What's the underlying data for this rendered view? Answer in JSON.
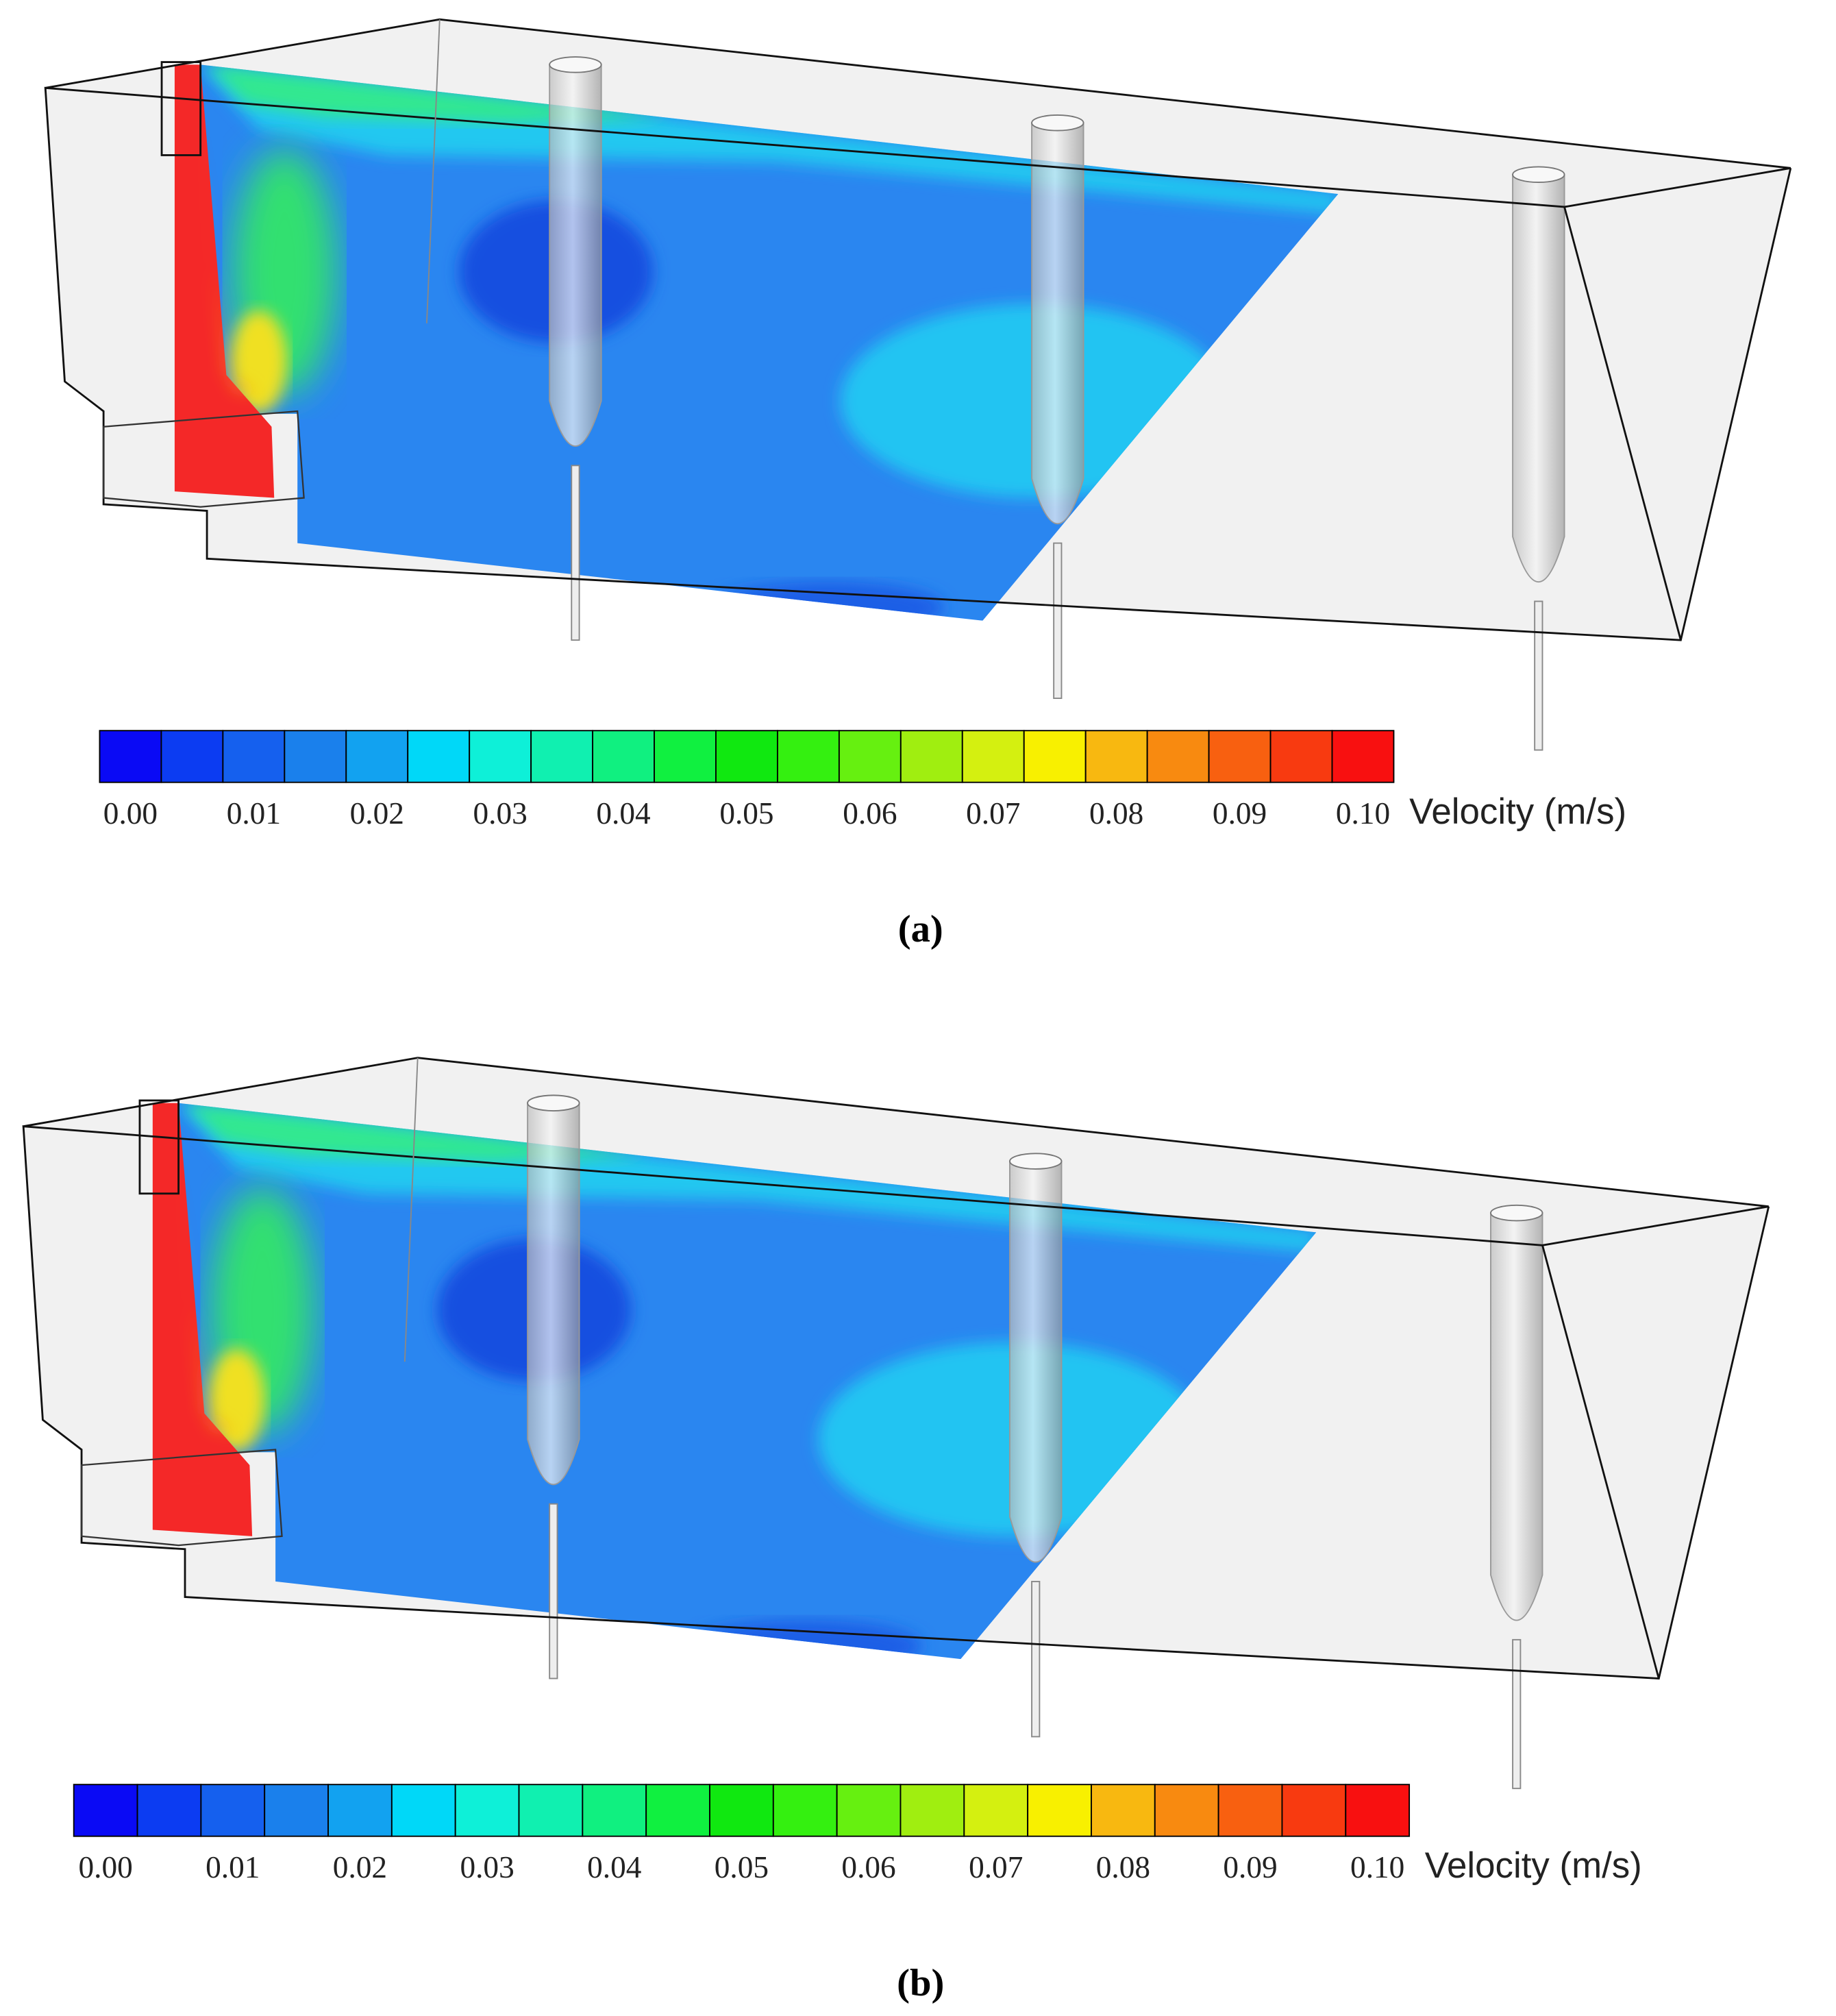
{
  "colormap": [
    "#0a0af5",
    "#0c3cf2",
    "#1560ee",
    "#1a80ec",
    "#12a2f0",
    "#00d8f8",
    "#0ef0d8",
    "#10f0b0",
    "#10f080",
    "#10f040",
    "#10e810",
    "#34f010",
    "#66f010",
    "#a0ee10",
    "#d4f010",
    "#f8f000",
    "#f8b810",
    "#f88a10",
    "#f86010",
    "#f83a10",
    "#f81010"
  ],
  "panels": [
    {
      "caption": "(a)",
      "colorbar": {
        "ticks": [
          "0.00",
          "0.01",
          "0.02",
          "0.03",
          "0.04",
          "0.05",
          "0.06",
          "0.07",
          "0.08",
          "0.09",
          "0.10"
        ],
        "label": "Velocity (m/s)"
      }
    },
    {
      "caption": "(b)",
      "colorbar": {
        "ticks": [
          "0.00",
          "0.01",
          "0.02",
          "0.03",
          "0.04",
          "0.05",
          "0.06",
          "0.07",
          "0.08",
          "0.09",
          "0.10"
        ],
        "label": "Velocity (m/s)"
      }
    }
  ]
}
